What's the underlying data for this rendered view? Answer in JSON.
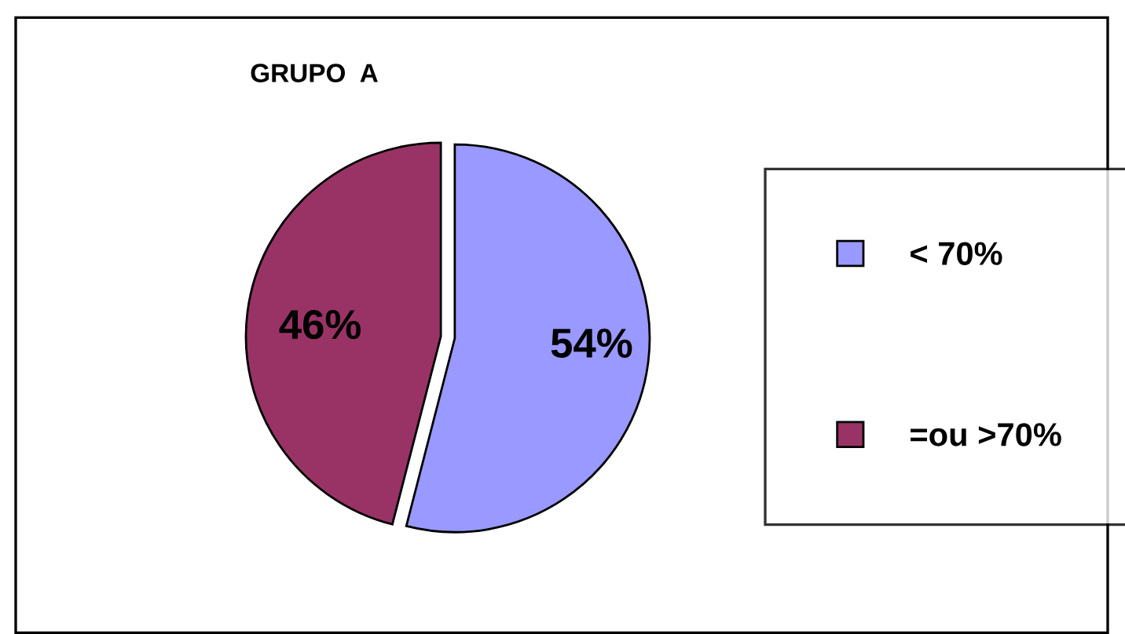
{
  "chart_data": {
    "type": "pie",
    "title": "GRUPO  A",
    "categories": [
      "< 70%",
      "=ou >70%"
    ],
    "values": [
      54,
      46
    ],
    "colors": [
      "#9999ff",
      "#993366"
    ],
    "value_labels": [
      "54%",
      "46%"
    ],
    "legend": "right"
  }
}
